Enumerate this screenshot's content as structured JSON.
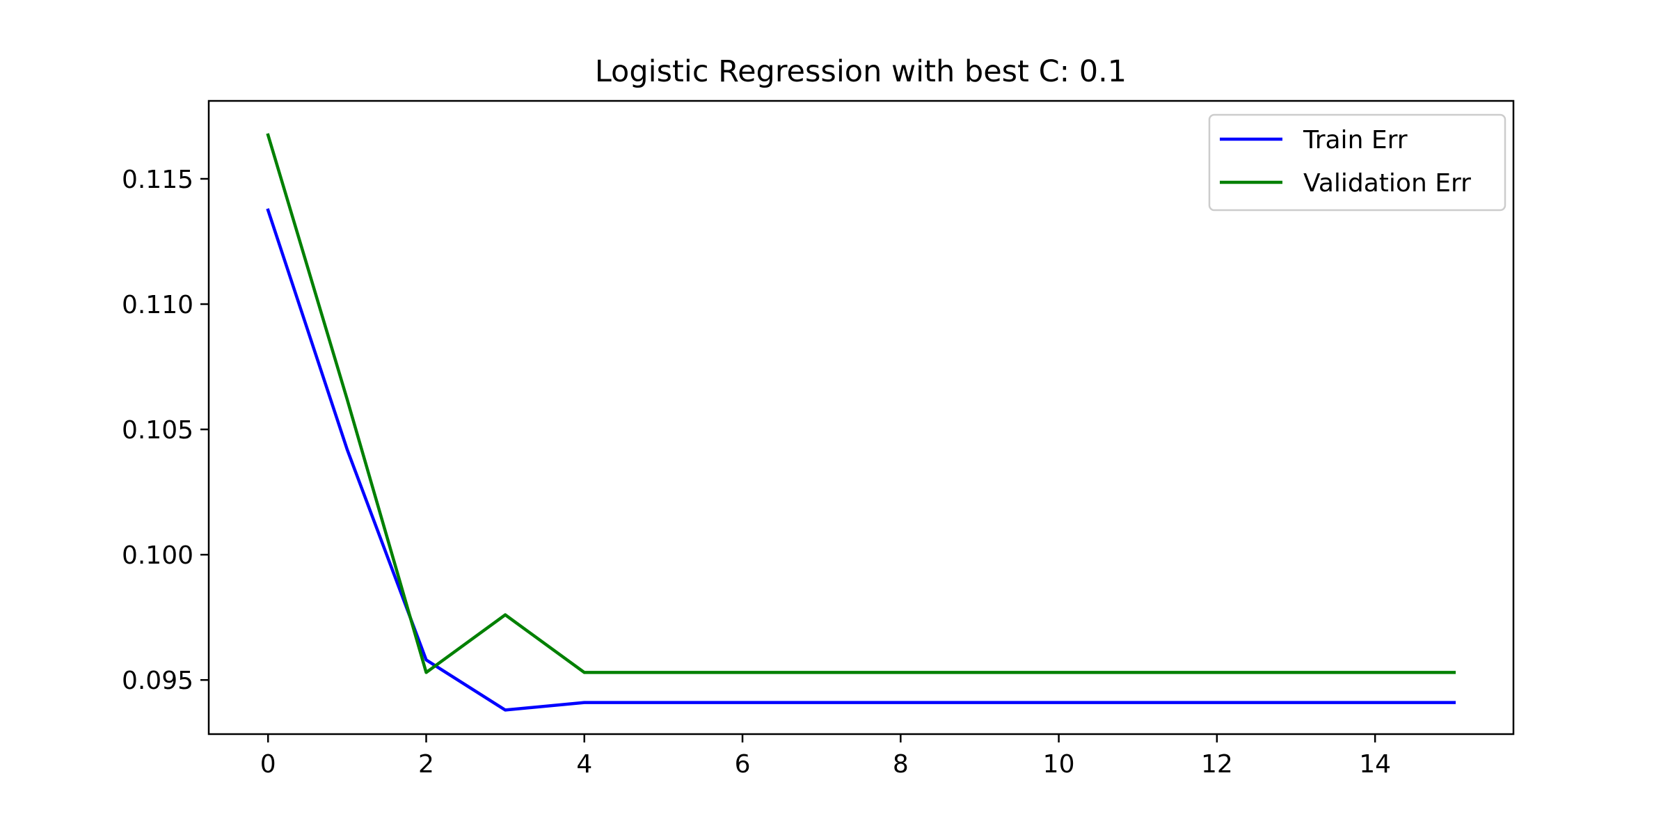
{
  "chart_data": {
    "type": "line",
    "title": "Logistic Regression with best C: 0.1",
    "xlabel": "",
    "ylabel": "",
    "xlim": [
      -0.75,
      15.75
    ],
    "ylim": [
      0.09284,
      0.11811
    ],
    "xticks": [
      0,
      2,
      4,
      6,
      8,
      10,
      12,
      14
    ],
    "xtick_labels": [
      "0",
      "2",
      "4",
      "6",
      "8",
      "10",
      "12",
      "14"
    ],
    "yticks": [
      0.095,
      0.1,
      0.105,
      0.11,
      0.115
    ],
    "ytick_labels": [
      "0.095",
      "0.100",
      "0.105",
      "0.110",
      "0.115"
    ],
    "grid": false,
    "legend_position": "top-right",
    "x": [
      0,
      1,
      2,
      3,
      4,
      5,
      6,
      7,
      8,
      9,
      10,
      11,
      12,
      13,
      14,
      15
    ],
    "series": [
      {
        "name": "Train Err",
        "color": "#0000ff",
        "values": [
          0.11375,
          0.1042,
          0.0958,
          0.0938,
          0.0941,
          0.0941,
          0.0941,
          0.0941,
          0.0941,
          0.0941,
          0.0941,
          0.0941,
          0.0941,
          0.0941,
          0.0941,
          0.0941
        ]
      },
      {
        "name": "Validation Err",
        "color": "#008000",
        "values": [
          0.11675,
          0.1062,
          0.0953,
          0.0976,
          0.0953,
          0.0953,
          0.0953,
          0.0953,
          0.0953,
          0.0953,
          0.0953,
          0.0953,
          0.0953,
          0.0953,
          0.0953,
          0.0953
        ]
      }
    ]
  }
}
